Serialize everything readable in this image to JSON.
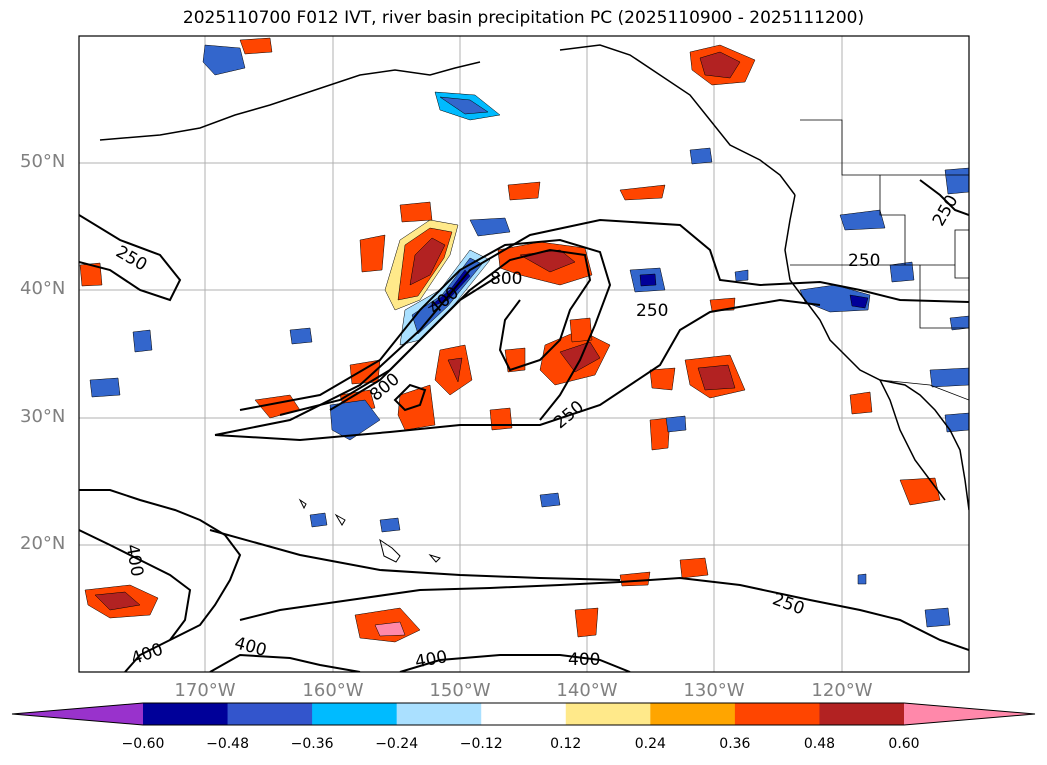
{
  "title": "2025110700 F012 IVT, river basin precipitation PC (2025110900 - 2025111200)",
  "map": {
    "lat_labels": [
      {
        "label": "50°N",
        "lat": 50
      },
      {
        "label": "40°N",
        "lat": 40
      },
      {
        "label": "30°N",
        "lat": 30
      },
      {
        "label": "20°N",
        "lat": 20
      }
    ],
    "lon_labels": [
      {
        "label": "170°W",
        "lon": -170
      },
      {
        "label": "160°W",
        "lon": -160
      },
      {
        "label": "150°W",
        "lon": -150
      },
      {
        "label": "140°W",
        "lon": -140
      },
      {
        "label": "130°W",
        "lon": -130
      },
      {
        "label": "120°W",
        "lon": -120
      }
    ],
    "contour_labels": [
      "250",
      "250",
      "250",
      "250",
      "250",
      "250",
      "400",
      "400",
      "400",
      "400",
      "400",
      "400",
      "800",
      "800"
    ],
    "fill_colors": {
      "neg_strong": "#000099",
      "neg_mid": "#3366cc",
      "neg_light": "#00bbff",
      "neg_pale": "#aae0ff",
      "pos_pale": "#ffe98a",
      "pos_light": "#ffa500",
      "pos_mid": "#ff4500",
      "pos_strong": "#b22222",
      "pos_extreme": "#ff88aa"
    }
  },
  "colorbar": {
    "colors": [
      "#9932cc",
      "#000099",
      "#3355cc",
      "#00bbff",
      "#aae0ff",
      "#ffffff",
      "#ffe98a",
      "#ffa500",
      "#ff4500",
      "#b22222",
      "#ff88aa"
    ],
    "ticks": [
      "−0.60",
      "−0.48",
      "−0.36",
      "−0.24",
      "−0.12",
      "0.12",
      "0.24",
      "0.36",
      "0.48",
      "0.60"
    ]
  }
}
